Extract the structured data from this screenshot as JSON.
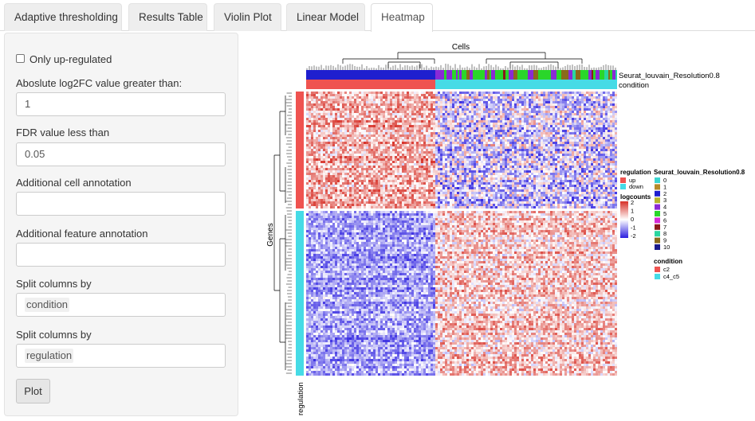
{
  "tabs": [
    "Adaptive thresholding",
    "Results Table",
    "Violin Plot",
    "Linear Model",
    "Heatmap"
  ],
  "active_tab": "Heatmap",
  "form": {
    "only_up_label": "Only up-regulated",
    "only_up_checked": false,
    "log2fc_label": "Aboslute log2FC value greater than:",
    "log2fc_value": "1",
    "fdr_label": "FDR value less than",
    "fdr_value": "0.05",
    "cell_annot_label": "Additional cell annotation",
    "cell_annot_value": "",
    "feature_annot_label": "Additional feature annotation",
    "feature_annot_value": "",
    "split_cols_label_1": "Split columns by",
    "split_cols_value_1": "condition",
    "split_cols_label_2": "Split columns by",
    "split_cols_value_2": "regulation",
    "plot_button": "Plot"
  },
  "heatmap": {
    "column_title": "Cells",
    "row_title": "Genes",
    "top_annotation_1": "Seurat_louvain_Resolution0.8",
    "top_annotation_2": "condition",
    "row_annotation": "regulation",
    "legend_regulation": {
      "title": "regulation",
      "items": [
        {
          "label": "up",
          "color": "#ef5350"
        },
        {
          "label": "down",
          "color": "#46dbe6"
        }
      ]
    },
    "legend_logcounts": {
      "title": "logcounts",
      "ticks": [
        "2",
        "1",
        "0",
        "-1",
        "-2"
      ],
      "colors": [
        "#d73027",
        "#ffffff",
        "#2b1ee0"
      ]
    },
    "legend_cluster": {
      "title": "Seurat_louvain_Resolution0.8",
      "items": [
        {
          "label": "0",
          "color": "#3ad6d1"
        },
        {
          "label": "1",
          "color": "#b58a2a"
        },
        {
          "label": "2",
          "color": "#1f1fcf"
        },
        {
          "label": "3",
          "color": "#b5b52a"
        },
        {
          "label": "4",
          "color": "#8a2ad6"
        },
        {
          "label": "5",
          "color": "#2ad62a"
        },
        {
          "label": "6",
          "color": "#d62ad6"
        },
        {
          "label": "7",
          "color": "#8b1a1a"
        },
        {
          "label": "8",
          "color": "#2ad6a0"
        },
        {
          "label": "9",
          "color": "#8a6a1a"
        },
        {
          "label": "10",
          "color": "#1a1a8b"
        }
      ]
    },
    "legend_condition": {
      "title": "condition",
      "items": [
        {
          "label": "c2",
          "color": "#ef5350"
        },
        {
          "label": "c4_c5",
          "color": "#46dbe6"
        }
      ]
    }
  }
}
